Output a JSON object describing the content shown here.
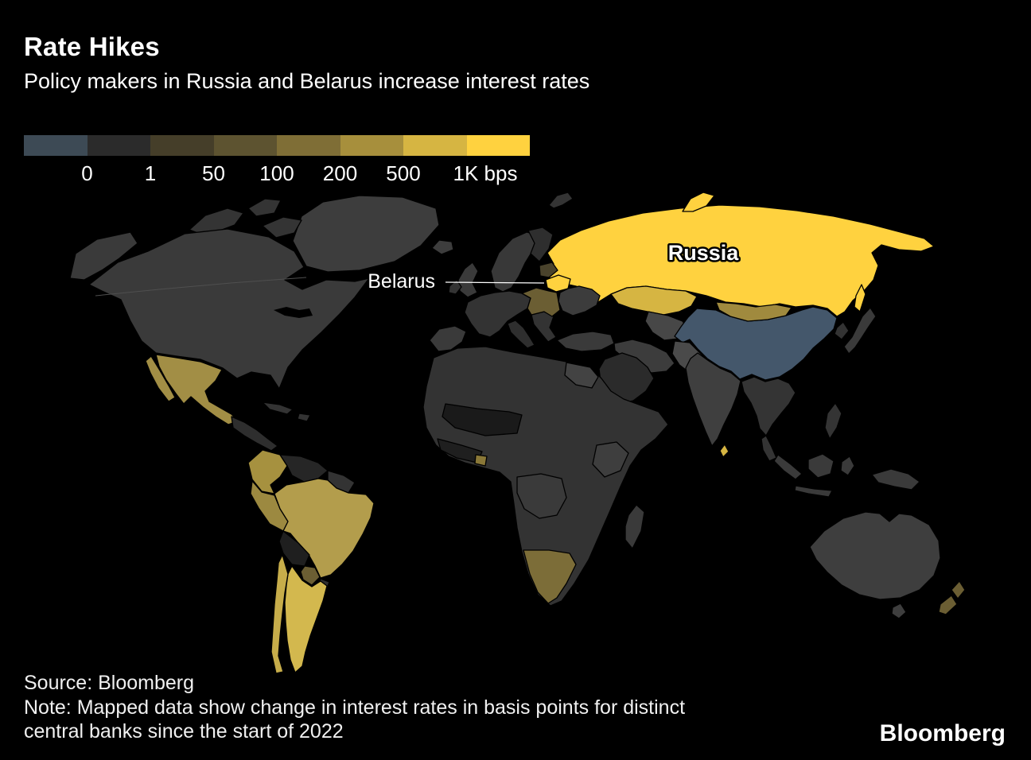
{
  "header": {
    "title": "Rate Hikes",
    "subtitle": "Policy makers in Russia and Belarus increase interest rates"
  },
  "legend": {
    "labels": [
      "0",
      "1",
      "50",
      "100",
      "200",
      "500",
      "1K bps"
    ],
    "colors": [
      "#3d4a55",
      "#2b2b2b",
      "#453e29",
      "#5d5330",
      "#7f6e36",
      "#a78f3c",
      "#d6b542",
      "#ffd23f"
    ]
  },
  "map": {
    "labels": {
      "russia": "Russia",
      "belarus": "Belarus"
    },
    "countries": {
      "greenland": {
        "fill": "#3d3d3d"
      },
      "iceland": {
        "fill": "#3d3d3d"
      },
      "arctic-islands": {
        "fill": "#343434"
      },
      "canada-us": {
        "fill": "#3a3a3a"
      },
      "mexico": {
        "fill": "#a28e45"
      },
      "central-america": {
        "fill": "#2e2e2e"
      },
      "caribbean": {
        "fill": "#333333"
      },
      "colombia": {
        "fill": "#a6913f"
      },
      "venezuela": {
        "fill": "#262626"
      },
      "guyanas": {
        "fill": "#333333"
      },
      "peru": {
        "fill": "#9c8940"
      },
      "brazil": {
        "fill": "#b39d4c"
      },
      "bolivia": {
        "fill": "#1f1f1f"
      },
      "paraguay": {
        "fill": "#6b5e33"
      },
      "uruguay": {
        "fill": "#303030"
      },
      "argentina": {
        "fill": "#d3b84e"
      },
      "chile": {
        "fill": "#c7ad4a"
      },
      "scandinavia": {
        "fill": "#383838"
      },
      "finland": {
        "fill": "#2e2e2e"
      },
      "uk": {
        "fill": "#3a3a3a"
      },
      "ireland": {
        "fill": "#333333"
      },
      "western-europe": {
        "fill": "#333333"
      },
      "iberia": {
        "fill": "#3a3a3a"
      },
      "italy": {
        "fill": "#2e2e2e"
      },
      "balkans": {
        "fill": "#333333"
      },
      "eastern-europe": {
        "fill": "#6b5e33"
      },
      "baltics": {
        "fill": "#4a432c"
      },
      "belarus": {
        "fill": "#ffd23f"
      },
      "ukraine": {
        "fill": "#3c3c3c"
      },
      "turkey": {
        "fill": "#3a3a3a"
      },
      "russia": {
        "fill": "#ffd23f"
      },
      "kazakhstan": {
        "fill": "#d6b542"
      },
      "central-asia": {
        "fill": "#474747"
      },
      "mongolia": {
        "fill": "#a08a3e"
      },
      "china": {
        "fill": "#44576b"
      },
      "korea": {
        "fill": "#333333"
      },
      "japan": {
        "fill": "#3a3a3a"
      },
      "india": {
        "fill": "#3f3f3f"
      },
      "sri-lanka": {
        "fill": "#d6b542"
      },
      "pakistan-afghanistan": {
        "fill": "#4a4a4a"
      },
      "iran": {
        "fill": "#3c3c3c"
      },
      "saudi-arabia": {
        "fill": "#2b2b2b"
      },
      "africa": {
        "fill": "#333333"
      },
      "egypt": {
        "fill": "#434343"
      },
      "sahel": {
        "fill": "#1a1a1a"
      },
      "west-africa": {
        "fill": "#1f1f1f"
      },
      "ghana": {
        "fill": "#8a7838"
      },
      "drc": {
        "fill": "#3a3a3a"
      },
      "east-africa": {
        "fill": "#3e3e3e"
      },
      "southern-africa": {
        "fill": "#7c6d38"
      },
      "madagascar": {
        "fill": "#3a3a3a"
      },
      "seasia": {
        "fill": "#343434"
      },
      "indonesia": {
        "fill": "#3a3a3a"
      },
      "philippines": {
        "fill": "#343434"
      },
      "new-guinea": {
        "fill": "#3a3a3a"
      },
      "australia": {
        "fill": "#3e3e3e"
      },
      "new-zealand": {
        "fill": "#6b5e33"
      },
      "lakes": {
        "fill": "#000000"
      }
    }
  },
  "chart_data": {
    "type": "heatmap",
    "subtype": "choropleth_world_map",
    "title": "Rate Hikes",
    "subtitle": "Policy makers in Russia and Belarus increase interest rates",
    "value_unit": "change in interest rates, basis points, since start of 2022",
    "color_scale": {
      "tick_labels": [
        "0",
        "1",
        "50",
        "100",
        "200",
        "500",
        "1K bps"
      ],
      "colors": [
        "#3d4a55",
        "#2b2b2b",
        "#453e29",
        "#5d5330",
        "#7f6e36",
        "#a78f3c",
        "#d6b542",
        "#ffd23f"
      ],
      "orientation": "horizontal",
      "position": "top-left"
    },
    "labeled_countries": [
      "Russia",
      "Belarus"
    ],
    "readings": [
      {
        "country": "Russia",
        "bin": "1K+ bps"
      },
      {
        "country": "Belarus",
        "bin": "1K+ bps"
      },
      {
        "country": "Kazakhstan",
        "bin": "500-1K bps"
      },
      {
        "country": "Argentina",
        "bin": "500-1K bps"
      },
      {
        "country": "Chile",
        "bin": "500-1K bps"
      },
      {
        "country": "Sri Lanka",
        "bin": "500-1K bps"
      },
      {
        "country": "Brazil",
        "bin": "200-500 bps"
      },
      {
        "country": "Mexico",
        "bin": "200-500 bps"
      },
      {
        "country": "Colombia",
        "bin": "200-500 bps"
      },
      {
        "country": "Peru",
        "bin": "200-500 bps"
      },
      {
        "country": "Mongolia",
        "bin": "200-500 bps"
      },
      {
        "country": "Paraguay",
        "bin": "100-200 bps"
      },
      {
        "country": "Southern Africa (Namibia/Botswana/South Africa)",
        "bin": "100-200 bps"
      },
      {
        "country": "New Zealand",
        "bin": "100-200 bps"
      },
      {
        "country": "Central/Eastern Europe",
        "bin": "50-200 bps"
      },
      {
        "country": "China",
        "bin": "below 0 (rate cut)"
      },
      {
        "country": "Most other countries",
        "bin": "0-50 bps"
      }
    ]
  },
  "footer": {
    "source": "Source: Bloomberg",
    "note_line1": "Note: Mapped data show change in interest rates in basis points for distinct",
    "note_line2": "central banks since the start of 2022",
    "brand": "Bloomberg"
  }
}
